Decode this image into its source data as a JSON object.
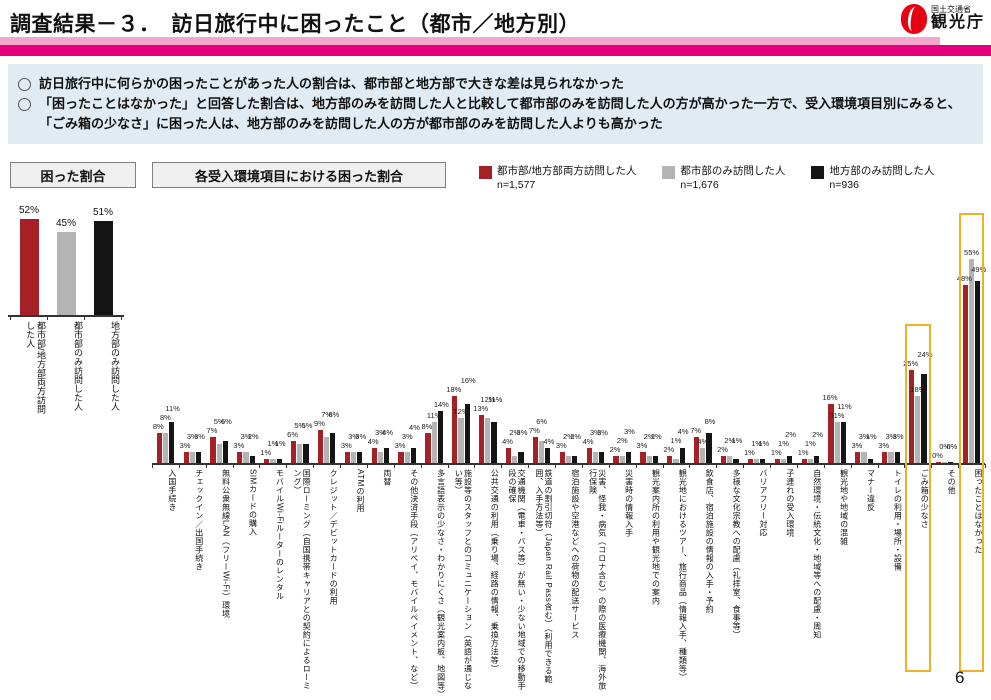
{
  "header": {
    "title": "調査結果－３．　訪日旅行中に困ったこと（都市／地方別）",
    "logo": {
      "ministry": "国土交通省",
      "agency": "観光庁"
    }
  },
  "bullets": [
    "訪日旅行中に何らかの困ったことがあった人の割合は、都市部と地方部で大きな差は見られなかった",
    "「困ったことはなかった」と回答した割合は、地方部のみを訪問した人と比較して都市部のみを訪問した人の方が高かった一方で、受入環境項目別にみると、「ごみ箱の少なさ」に困った人は、地方部のみを訪問した人の方が都市部のみを訪問した人よりも高かった"
  ],
  "section_labels": {
    "left": "困った割合",
    "right": "各受入環境項目における困った割合"
  },
  "legend": [
    {
      "label": "都市部/地方部両方訪問した人",
      "n": "n=1,577",
      "color": "#A62126"
    },
    {
      "label": "都市部のみ訪問した人",
      "n": "n=1,676",
      "color": "#B4B4B4"
    },
    {
      "label": "地方部のみ訪問した人",
      "n": "n=936",
      "color": "#151515"
    }
  ],
  "colors": {
    "red": "#A62126",
    "gray": "#B4B4B4",
    "black": "#151515",
    "band_light": "#F4A7CD",
    "band_dark": "#E4007F",
    "bullet_bg": "#E0EBF3",
    "highlight": "#EFAF26"
  },
  "page_number": "6",
  "chart_data": [
    {
      "type": "bar",
      "title": "困った割合",
      "unit": "%",
      "categories": [
        "都市部/地方部両方訪問した人",
        "都市部のみ訪問した人",
        "地方部のみ訪問した人"
      ],
      "values": [
        52,
        45,
        51
      ],
      "ylim": [
        0,
        60
      ],
      "grid": false
    },
    {
      "type": "bar",
      "title": "各受入環境項目における困った割合",
      "unit": "%",
      "ylim": [
        0,
        60
      ],
      "grid": false,
      "legend_position": "top-right",
      "highlighted_categories": [
        "ごみ箱の少なさ",
        "困ったことはなかった"
      ],
      "highlight_indexes": [
        28,
        30
      ],
      "categories": [
        "入国手続き",
        "チェックイン／出国手続き",
        "無料公衆無線LAN（フリーWi-Fi）環境",
        "SIMカードの購入",
        "モバイルWi-Fiルーターのレンタル",
        "国際ローミング（自国携帯キャリアとの契約によるローミング）",
        "クレジット／デビットカードの利用",
        "ATMの利用",
        "両替",
        "その他決済手段（アリペイ、モバイルペイメント、など）",
        "多言語表示の少なさ・わかりにくさ（観光案内板、地図等）",
        "施設等のスタッフとのコミュニケーション（英語が通じない等）",
        "公共交通の利用（乗り場、経路の情報、乗換方法等）",
        "交通機関（電車・バス等）が無い・少ない地域での移動手段の確保",
        "鉄道の割引切符（Japan Rail Pass含む）（利用できる範囲、入手方法等）",
        "宿泊施設や空港などへの荷物の配送サービス",
        "災害、怪我・病気（コロナ含む）の際の医療機関、海外旅行保険",
        "災害時の情報入手",
        "観光案内所の利用や観光地での案内",
        "観光地におけるツアー、旅行商品（情報入手、種類等）",
        "飲食店、宿泊施設の情報の入手・予約",
        "多様な文化宗教への配慮（礼拝室、食事等）",
        "バリアフリー対応",
        "子連れの受入環境",
        "自然環境・伝統文化・地域等への配慮・周知",
        "観光地や地域の混雑",
        "マナー違反",
        "トイレの利用・場所・設備",
        "ごみ箱の少なさ",
        "その他",
        "困ったことはなかった"
      ],
      "series": [
        {
          "name": "都市部/地方部両方訪問した人（n=1,577）",
          "color": "#A62126",
          "values": [
            8,
            3,
            7,
            3,
            1,
            6,
            9,
            3,
            4,
            3,
            8,
            18,
            13,
            4,
            7,
            3,
            4,
            2,
            3,
            2,
            7,
            2,
            1,
            1,
            1,
            16,
            3,
            3,
            25,
            0,
            48
          ]
        },
        {
          "name": "都市部のみ訪問した人（n=1,676）",
          "color": "#B4B4B4",
          "values": [
            8,
            3,
            5,
            3,
            1,
            5,
            7,
            3,
            3,
            3,
            11,
            12,
            12,
            2,
            6,
            2,
            3,
            2,
            2,
            1,
            4,
            2,
            1,
            1,
            1,
            11,
            3,
            3,
            18,
            0,
            55
          ]
        },
        {
          "name": "地方部のみ訪問した人（n=936）",
          "color": "#151515",
          "values": [
            11,
            3,
            6,
            2,
            1,
            5,
            8,
            3,
            4,
            4,
            14,
            16,
            11,
            3,
            4,
            2,
            3,
            3,
            2,
            4,
            8,
            1,
            1,
            2,
            2,
            11,
            1,
            3,
            24,
            0,
            49
          ]
        }
      ]
    }
  ]
}
